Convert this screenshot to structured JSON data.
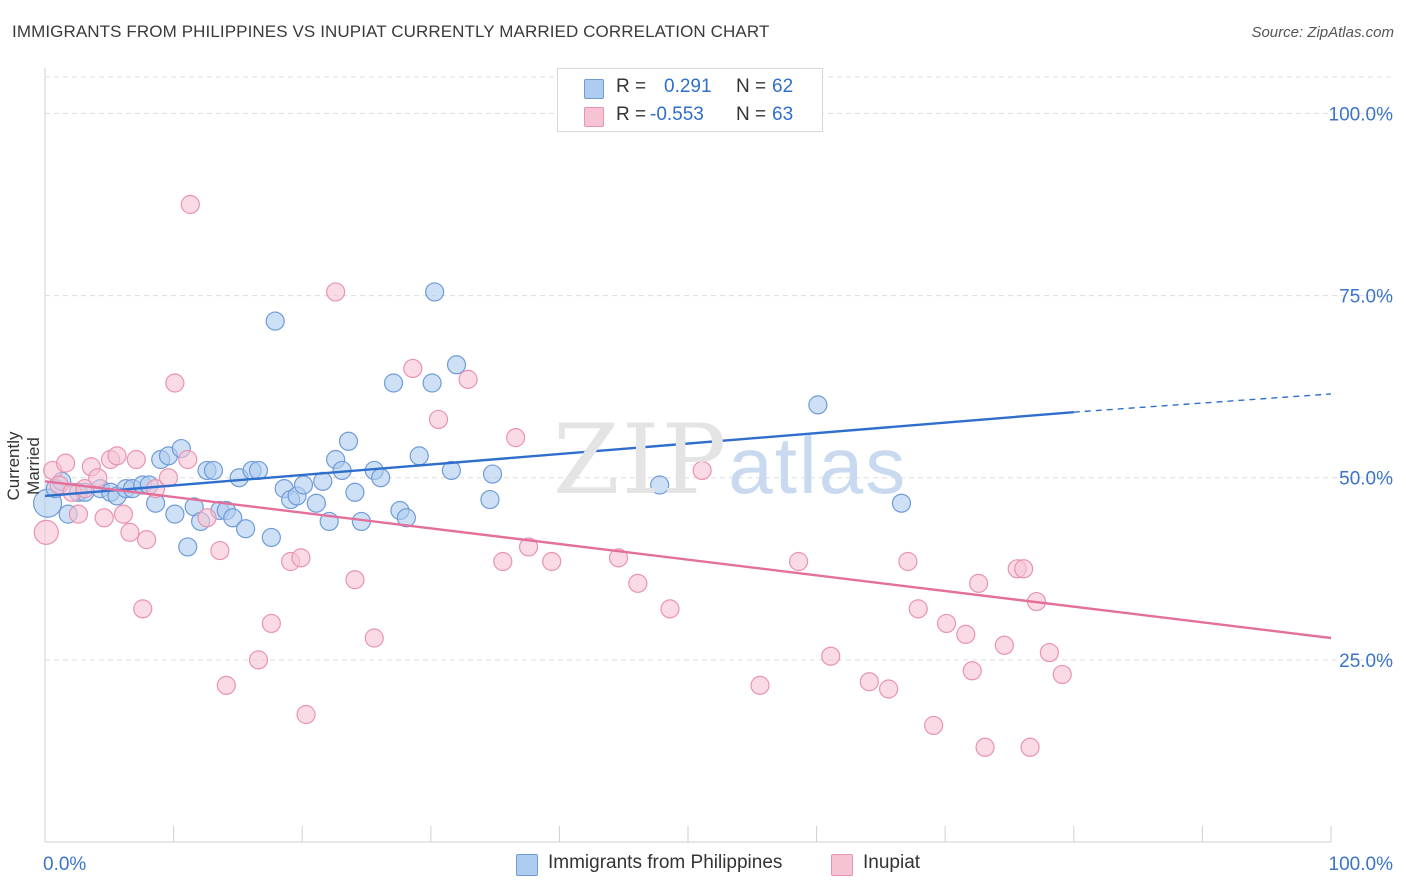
{
  "title": "IMMIGRANTS FROM PHILIPPINES VS INUPIAT CURRENTLY MARRIED CORRELATION CHART",
  "source": "Source: ZipAtlas.com",
  "watermark": {
    "zip": "ZIP",
    "atlas": "atlas"
  },
  "colors": {
    "blue_fill": "#aecbf0",
    "blue_stroke": "#6f9bd8",
    "blue_line": "#2f6fcb",
    "pink_fill": "#f6c3d3",
    "pink_stroke": "#e993b0",
    "pink_line": "#e36f9a",
    "axis_text": "#3a74c9",
    "grid": "#dddddd"
  },
  "legend_top": [
    {
      "r_label": "R =",
      "r_value": "0.291",
      "n_label": "N =",
      "n_value": "62"
    },
    {
      "r_label": "R =",
      "r_value": "-0.553",
      "n_label": "N =",
      "n_value": "63"
    }
  ],
  "legend_bottom": [
    {
      "label": "Immigrants from Philippines"
    },
    {
      "label": "Inupiat"
    }
  ],
  "chart_data": {
    "type": "scatter",
    "title": "IMMIGRANTS FROM PHILIPPINES VS INUPIAT CURRENTLY MARRIED CORRELATION CHART",
    "xlabel": "",
    "ylabel": "Currently Married",
    "xlim": [
      0,
      100
    ],
    "ylim": [
      0,
      105
    ],
    "x_tick_labels": [
      "0.0%",
      "100.0%"
    ],
    "y_ticks": [
      25,
      50,
      75,
      100
    ],
    "y_tick_labels": [
      "25.0%",
      "50.0%",
      "75.0%",
      "100.0%"
    ],
    "grid": true,
    "series": [
      {
        "name": "Immigrants from Philippines",
        "r": 0.291,
        "n": 62,
        "trend": {
          "x0": 0,
          "y0": 47.5,
          "x1": 80,
          "y1": 59.0,
          "dashed_to_x": 100,
          "dashed_to_y": 61.5
        },
        "points": [
          [
            0.2,
            46.5,
            14
          ],
          [
            0.8,
            48.5,
            9
          ],
          [
            1.3,
            49.5,
            9
          ],
          [
            1.8,
            45,
            9
          ],
          [
            2.6,
            48,
            9
          ],
          [
            3.1,
            48,
            9
          ],
          [
            4.3,
            48.5,
            9
          ],
          [
            5.1,
            48,
            9
          ],
          [
            5.6,
            47.5,
            9
          ],
          [
            6.3,
            48.5,
            9
          ],
          [
            6.8,
            48.5,
            9
          ],
          [
            7.6,
            49,
            9
          ],
          [
            8.1,
            49,
            9
          ],
          [
            8.6,
            46.5,
            9
          ],
          [
            9.0,
            52.5,
            9
          ],
          [
            9.6,
            53,
            9
          ],
          [
            10.1,
            45,
            9
          ],
          [
            10.6,
            54,
            9
          ],
          [
            11.1,
            40.5,
            9
          ],
          [
            11.6,
            46,
            9
          ],
          [
            12.1,
            44,
            9
          ],
          [
            12.6,
            51,
            9
          ],
          [
            13.1,
            51,
            9
          ],
          [
            13.6,
            45.5,
            9
          ],
          [
            14.1,
            45.5,
            9
          ],
          [
            14.6,
            44.5,
            9
          ],
          [
            15.1,
            50,
            9
          ],
          [
            15.6,
            43,
            9
          ],
          [
            16.1,
            51,
            9
          ],
          [
            16.6,
            51,
            9
          ],
          [
            17.6,
            41.8,
            9
          ],
          [
            17.9,
            71.5,
            9
          ],
          [
            18.6,
            48.5,
            9
          ],
          [
            19.1,
            47,
            9
          ],
          [
            19.6,
            47.5,
            9
          ],
          [
            20.1,
            49,
            9
          ],
          [
            21.1,
            46.5,
            9
          ],
          [
            21.6,
            49.5,
            9
          ],
          [
            22.1,
            44,
            9
          ],
          [
            22.6,
            52.5,
            9
          ],
          [
            23.1,
            51,
            9
          ],
          [
            23.6,
            55,
            9
          ],
          [
            24.1,
            48,
            9
          ],
          [
            24.6,
            44,
            9
          ],
          [
            25.6,
            51,
            9
          ],
          [
            26.1,
            50,
            9
          ],
          [
            27.1,
            63,
            9
          ],
          [
            27.6,
            45.5,
            9
          ],
          [
            28.1,
            44.5,
            9
          ],
          [
            29.1,
            53,
            9
          ],
          [
            30.1,
            63,
            9
          ],
          [
            30.3,
            75.5,
            9
          ],
          [
            31.6,
            51,
            9
          ],
          [
            32.0,
            65.5,
            9
          ],
          [
            34.6,
            47,
            9
          ],
          [
            34.8,
            50.5,
            9
          ],
          [
            47.8,
            49,
            9
          ],
          [
            60.1,
            60,
            9
          ],
          [
            66.6,
            46.5,
            9
          ]
        ]
      },
      {
        "name": "Inupiat",
        "r": -0.553,
        "n": 63,
        "trend": {
          "x0": 0,
          "y0": 49.5,
          "x1": 100,
          "y1": 28.0
        },
        "points": [
          [
            0.1,
            42.5,
            12
          ],
          [
            0.6,
            51,
            9
          ],
          [
            1.1,
            49,
            9
          ],
          [
            1.6,
            52,
            9
          ],
          [
            2.1,
            48,
            9
          ],
          [
            2.6,
            45,
            9
          ],
          [
            3.1,
            48.5,
            9
          ],
          [
            3.6,
            51.5,
            9
          ],
          [
            4.1,
            50,
            9
          ],
          [
            4.6,
            44.5,
            9
          ],
          [
            5.1,
            52.5,
            9
          ],
          [
            5.6,
            53,
            9
          ],
          [
            6.1,
            45,
            9
          ],
          [
            6.6,
            42.5,
            9
          ],
          [
            7.1,
            52.5,
            9
          ],
          [
            7.6,
            32,
            9
          ],
          [
            7.9,
            41.5,
            9
          ],
          [
            8.6,
            48.5,
            9
          ],
          [
            9.6,
            50,
            9
          ],
          [
            10.1,
            63,
            9
          ],
          [
            11.1,
            52.5,
            9
          ],
          [
            11.3,
            87.5,
            9
          ],
          [
            12.6,
            44.5,
            9
          ],
          [
            13.6,
            40,
            9
          ],
          [
            14.1,
            21.5,
            9
          ],
          [
            16.6,
            25,
            9
          ],
          [
            17.6,
            30,
            9
          ],
          [
            19.1,
            38.5,
            9
          ],
          [
            19.9,
            39,
            9
          ],
          [
            20.3,
            17.5,
            9
          ],
          [
            22.6,
            75.5,
            9
          ],
          [
            24.1,
            36,
            9
          ],
          [
            25.6,
            28,
            9
          ],
          [
            28.6,
            65,
            9
          ],
          [
            30.6,
            58,
            9
          ],
          [
            32.9,
            63.5,
            9
          ],
          [
            35.6,
            38.5,
            9
          ],
          [
            36.6,
            55.5,
            9
          ],
          [
            37.6,
            40.5,
            9
          ],
          [
            39.4,
            38.5,
            9
          ],
          [
            44.6,
            39,
            9
          ],
          [
            46.1,
            35.5,
            9
          ],
          [
            48.6,
            32,
            9
          ],
          [
            51.1,
            51,
            9
          ],
          [
            55.6,
            21.5,
            9
          ],
          [
            58.6,
            38.5,
            9
          ],
          [
            61.1,
            25.5,
            9
          ],
          [
            64.1,
            22,
            9
          ],
          [
            65.6,
            21,
            9
          ],
          [
            67.1,
            38.5,
            9
          ],
          [
            67.9,
            32,
            9
          ],
          [
            69.1,
            16,
            9
          ],
          [
            70.1,
            30,
            9
          ],
          [
            71.6,
            28.5,
            9
          ],
          [
            72.1,
            23.5,
            9
          ],
          [
            72.6,
            35.5,
            9
          ],
          [
            73.1,
            13,
            9
          ],
          [
            74.6,
            27,
            9
          ],
          [
            75.6,
            37.5,
            9
          ],
          [
            76.1,
            37.5,
            9
          ],
          [
            76.6,
            13,
            9
          ],
          [
            77.1,
            33,
            9
          ],
          [
            78.1,
            26,
            9
          ],
          [
            79.1,
            23,
            9
          ]
        ]
      }
    ]
  }
}
